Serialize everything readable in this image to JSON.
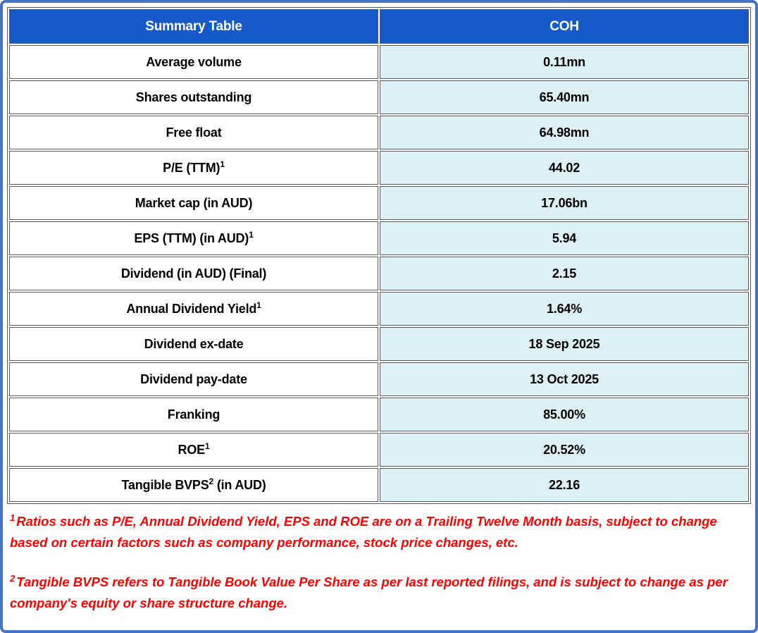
{
  "colors": {
    "frame_border": "#4472C4",
    "header_bg": "#1659C9",
    "header_text": "#FFFFFF",
    "value_cell_bg": "#DDF0F5",
    "cell_border": "#595959",
    "body_text": "#000000",
    "footnote_text": "#FF0000"
  },
  "table": {
    "header": {
      "col1": "Summary Table",
      "col2": "COH"
    },
    "rows": [
      {
        "label_pre": "Average volume",
        "label_sup": "",
        "label_post": "",
        "value": "0.11mn"
      },
      {
        "label_pre": "Shares outstanding",
        "label_sup": "",
        "label_post": "",
        "value": "65.40mn"
      },
      {
        "label_pre": "Free float",
        "label_sup": "",
        "label_post": "",
        "value": "64.98mn"
      },
      {
        "label_pre": "P/E (TTM)",
        "label_sup": "1",
        "label_post": "",
        "value": "44.02"
      },
      {
        "label_pre": "Market cap (in AUD)",
        "label_sup": "",
        "label_post": "",
        "value": "17.06bn"
      },
      {
        "label_pre": "EPS (TTM) (in AUD)",
        "label_sup": "1",
        "label_post": "",
        "value": "5.94"
      },
      {
        "label_pre": "Dividend (in AUD) (Final)",
        "label_sup": "",
        "label_post": "",
        "value": "2.15"
      },
      {
        "label_pre": "Annual Dividend Yield",
        "label_sup": "1",
        "label_post": "",
        "value": "1.64%"
      },
      {
        "label_pre": "Dividend ex-date",
        "label_sup": "",
        "label_post": "",
        "value": "18 Sep 2025"
      },
      {
        "label_pre": "Dividend pay-date",
        "label_sup": "",
        "label_post": "",
        "value": "13 Oct 2025"
      },
      {
        "label_pre": "Franking",
        "label_sup": "",
        "label_post": "",
        "value": "85.00%"
      },
      {
        "label_pre": "ROE",
        "label_sup": "1",
        "label_post": "",
        "value": "20.52%"
      },
      {
        "label_pre": "Tangible BVPS",
        "label_sup": "2",
        "label_post": " (in AUD)",
        "value": "22.16"
      }
    ]
  },
  "footnotes": [
    {
      "marker": "1",
      "text": "Ratios such as P/E, Annual Dividend Yield, EPS and ROE are on a Trailing Twelve Month basis, subject to change based on certain factors such as company performance, stock price changes, etc."
    },
    {
      "marker": "2",
      "text": "Tangible BVPS refers to Tangible Book Value Per Share as per last reported filings, and is subject to change as per company's equity or share structure change."
    }
  ]
}
